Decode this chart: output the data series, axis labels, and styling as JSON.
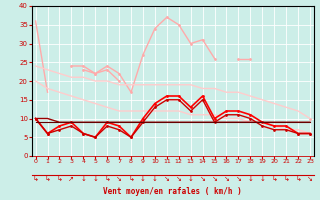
{
  "xlabel": "Vent moyen/en rafales ( km/h )",
  "x": [
    0,
    1,
    2,
    3,
    4,
    5,
    6,
    7,
    8,
    9,
    10,
    11,
    12,
    13,
    14,
    15,
    16,
    17,
    18,
    19,
    20,
    21,
    22,
    23
  ],
  "ylim": [
    0,
    40
  ],
  "xlim": [
    -0.3,
    23.3
  ],
  "yticks": [
    0,
    5,
    10,
    15,
    20,
    25,
    30,
    35,
    40
  ],
  "bg_color": "#cceee8",
  "grid_color": "#ffffff",
  "tick_color": "#cc0000",
  "label_color": "#cc0000",
  "lines": [
    {
      "y": [
        36,
        17,
        null,
        null,
        null,
        null,
        null,
        null,
        null,
        null,
        null,
        null,
        null,
        null,
        null,
        null,
        null,
        null,
        null,
        null,
        null,
        null,
        null,
        null
      ],
      "color": "#ffaaaa",
      "lw": 1.0,
      "marker": null,
      "ms": 0
    },
    {
      "y": [
        null,
        null,
        null,
        24,
        24,
        22,
        24,
        22,
        17,
        27,
        34,
        37,
        35,
        30,
        31,
        26,
        null,
        26,
        26,
        null,
        null,
        null,
        null,
        10
      ],
      "color": "#ffaaaa",
      "lw": 1.0,
      "marker": "o",
      "ms": 2
    },
    {
      "y": [
        10,
        6,
        null,
        null,
        23,
        22,
        23,
        20,
        null,
        null,
        null,
        null,
        null,
        null,
        null,
        null,
        null,
        null,
        null,
        null,
        null,
        null,
        null,
        null
      ],
      "color": "#ffaaaa",
      "lw": 1.0,
      "marker": "o",
      "ms": 2
    },
    {
      "y": [
        24,
        23,
        22,
        21,
        21,
        20,
        20,
        19,
        19,
        19,
        19,
        19,
        19,
        19,
        18,
        18,
        17,
        17,
        16,
        15,
        14,
        13,
        12,
        10
      ],
      "color": "#ffcccc",
      "lw": 1.0,
      "marker": null,
      "ms": 0
    },
    {
      "y": [
        20,
        18,
        17,
        16,
        15,
        14,
        13,
        12,
        12,
        12,
        12,
        12,
        12,
        11,
        11,
        11,
        10,
        10,
        9,
        9,
        8,
        7,
        7,
        6
      ],
      "color": "#ffcccc",
      "lw": 1.0,
      "marker": null,
      "ms": 0
    },
    {
      "y": [
        10,
        6,
        8,
        9,
        6,
        5,
        9,
        8,
        5,
        10,
        14,
        16,
        16,
        13,
        16,
        10,
        12,
        12,
        11,
        9,
        8,
        8,
        6,
        6
      ],
      "color": "#ff0000",
      "lw": 1.2,
      "marker": "o",
      "ms": 2
    },
    {
      "y": [
        10,
        10,
        9,
        9,
        9,
        9,
        9,
        9,
        9,
        9,
        9,
        9,
        9,
        9,
        9,
        9,
        9,
        9,
        9,
        9,
        9,
        9,
        9,
        9
      ],
      "color": "#990000",
      "lw": 1.0,
      "marker": null,
      "ms": 0
    },
    {
      "y": [
        10,
        6,
        7,
        8,
        6,
        5,
        8,
        7,
        5,
        9,
        13,
        15,
        15,
        12,
        15,
        9,
        11,
        11,
        10,
        8,
        7,
        7,
        6,
        6
      ],
      "color": "#cc0000",
      "lw": 1.0,
      "marker": "o",
      "ms": 2
    },
    {
      "y": [
        9,
        9,
        9,
        9,
        9,
        9,
        9,
        9,
        9,
        9,
        9,
        9,
        9,
        9,
        9,
        9,
        9,
        9,
        9,
        9,
        9,
        9,
        9,
        9
      ],
      "color": "#660000",
      "lw": 0.8,
      "marker": null,
      "ms": 0
    }
  ],
  "wind_dirs": [
    "↳",
    "↳",
    "↳",
    "↗",
    "↓",
    "↓",
    "↳",
    "↘",
    "↳",
    "↓",
    "↓",
    "↘",
    "↘",
    "↓",
    "↘",
    "↘",
    "↘",
    "↘",
    "↓",
    "↓",
    "↳",
    "↳",
    "↳",
    "↘"
  ]
}
